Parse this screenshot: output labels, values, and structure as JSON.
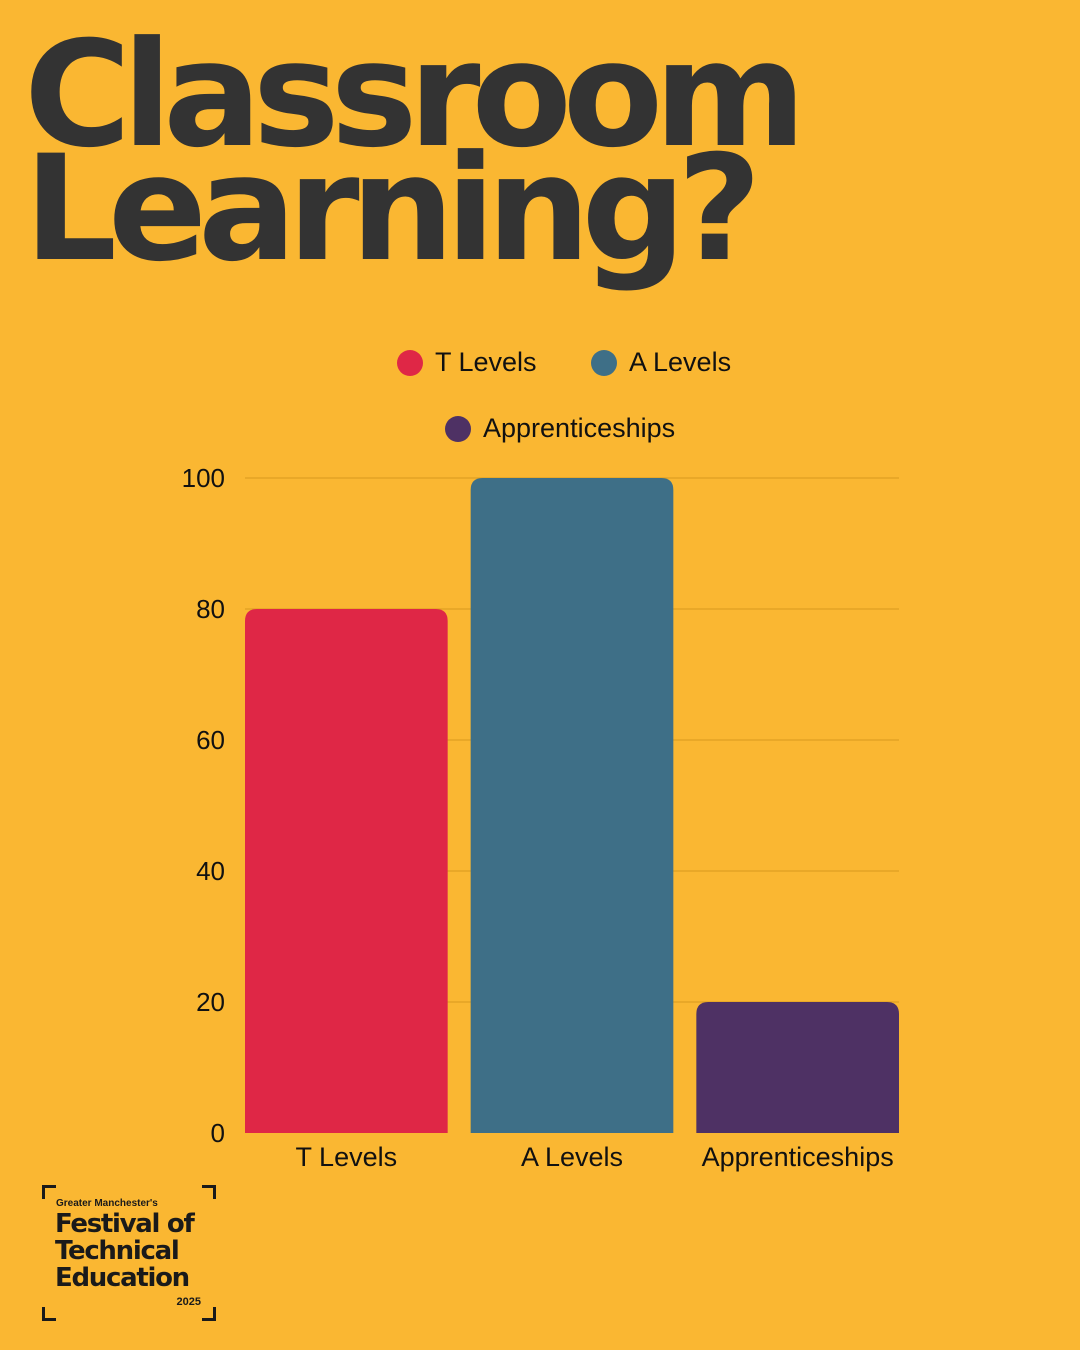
{
  "title": {
    "line1": "Classroom",
    "line2": "Learning?"
  },
  "chart_data": {
    "type": "bar",
    "categories": [
      "T Levels",
      "A Levels",
      "Apprenticeships"
    ],
    "values": [
      80,
      100,
      20
    ],
    "colors": [
      "#DF2746",
      "#3E6F87",
      "#4E3164"
    ],
    "legend": [
      "T Levels",
      "A Levels",
      "Apprenticeships"
    ],
    "legend_position": "top",
    "yticks": [
      0,
      20,
      40,
      60,
      80,
      100
    ],
    "ylim": [
      0,
      100
    ],
    "grid": true,
    "title": "",
    "xlabel": "",
    "ylabel": ""
  },
  "logo": {
    "subtitle": "Greater Manchester's",
    "line1": "Festival of",
    "line2": "Technical",
    "line3": "Education",
    "year": "2025"
  }
}
